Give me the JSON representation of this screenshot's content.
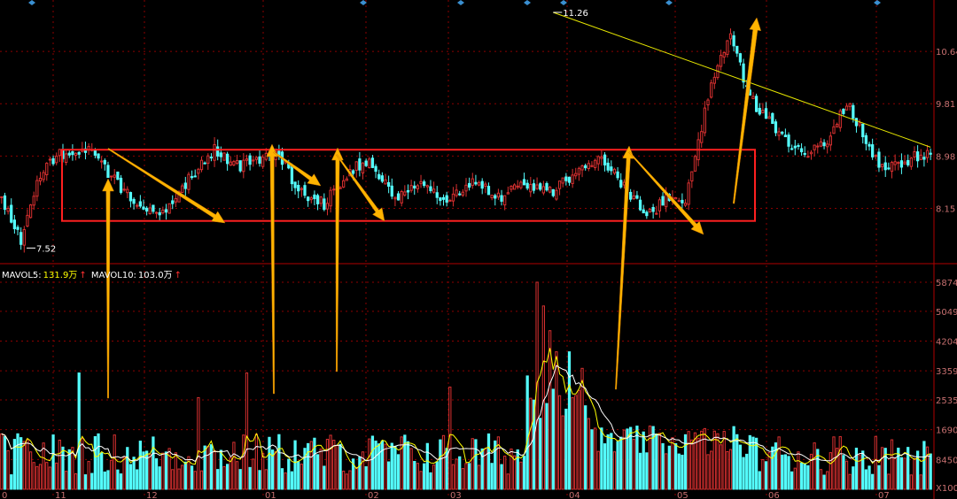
{
  "indicator": {
    "mavol5_label": "MAVOL5:",
    "mavol5_value": "131.9万",
    "mavol10_label": "MAVOL10:",
    "mavol10_value": "103.0万",
    "arrow": "↑"
  },
  "colors": {
    "background": "#000000",
    "up": "#d83030",
    "down": "#54fcfc",
    "annotation_arrow": "#ffb400",
    "box": "#ff2020",
    "ma5": "#ffff00",
    "ma10": "#ffffff",
    "grid": "#8b0000",
    "axis_text": "#c87070"
  },
  "chart_data": [
    {
      "type": "candlestick",
      "y_ticks": [
        "10.64",
        "9.81",
        "8.98",
        "8.15"
      ],
      "ylim": [
        7.3,
        11.4
      ],
      "x_ticks": [
        "0",
        "11",
        "12",
        "01",
        "02",
        "03",
        "04",
        "05",
        "06",
        "07"
      ],
      "annotations": [
        {
          "text": "7.52",
          "kind": "low",
          "value": 7.52
        },
        {
          "text": "11.26",
          "kind": "high",
          "value": 11.26
        }
      ],
      "pivots": [
        [
          0,
          8.32
        ],
        [
          6,
          7.62
        ],
        [
          12,
          8.7
        ],
        [
          18,
          9.0
        ],
        [
          26,
          9.1
        ],
        [
          32,
          8.78
        ],
        [
          40,
          8.32
        ],
        [
          50,
          8.07
        ],
        [
          58,
          8.62
        ],
        [
          66,
          9.08
        ],
        [
          74,
          8.82
        ],
        [
          80,
          8.92
        ],
        [
          86,
          9.02
        ],
        [
          92,
          8.42
        ],
        [
          100,
          8.22
        ],
        [
          108,
          8.75
        ],
        [
          114,
          8.9
        ],
        [
          122,
          8.3
        ],
        [
          130,
          8.5
        ],
        [
          138,
          8.3
        ],
        [
          146,
          8.6
        ],
        [
          154,
          8.32
        ],
        [
          162,
          8.52
        ],
        [
          170,
          8.4
        ],
        [
          178,
          8.72
        ],
        [
          186,
          8.95
        ],
        [
          194,
          8.45
        ],
        [
          200,
          8.0
        ],
        [
          206,
          8.3
        ],
        [
          212,
          8.22
        ],
        [
          216,
          9.2
        ],
        [
          220,
          10.2
        ],
        [
          226,
          10.9
        ],
        [
          232,
          9.9
        ],
        [
          240,
          9.4
        ],
        [
          248,
          9.0
        ],
        [
          256,
          9.2
        ],
        [
          262,
          9.85
        ],
        [
          270,
          9.0
        ],
        [
          274,
          8.75
        ],
        [
          282,
          8.95
        ],
        [
          288,
          9.0
        ]
      ],
      "trading_days": 289,
      "box_range": [
        7.95,
        9.08
      ],
      "trendline": [
        [
          171,
          11.26
        ],
        [
          288,
          9.12
        ]
      ]
    },
    {
      "type": "bar",
      "title": "MAVOL",
      "y_ticks": [
        "5874",
        "5049",
        "4204",
        "3359",
        "2535",
        "1690",
        "8450",
        "X100"
      ],
      "ylim": [
        0,
        6200
      ],
      "series": [
        {
          "name": "MAVOL5",
          "value": "131.9万"
        },
        {
          "name": "MAVOL10",
          "value": "103.0万"
        }
      ],
      "spikes": [
        {
          "day": 24,
          "value": 3300
        },
        {
          "day": 61,
          "value": 2600
        },
        {
          "day": 76,
          "value": 3300
        },
        {
          "day": 139,
          "value": 2900
        }
      ],
      "surge": [
        {
          "day": 166,
          "value": 5874
        },
        {
          "day": 168,
          "value": 5200
        },
        {
          "day": 170,
          "value": 4500
        },
        {
          "day": 172,
          "value": 3900
        },
        {
          "day": 176,
          "value": 3900
        }
      ]
    }
  ]
}
